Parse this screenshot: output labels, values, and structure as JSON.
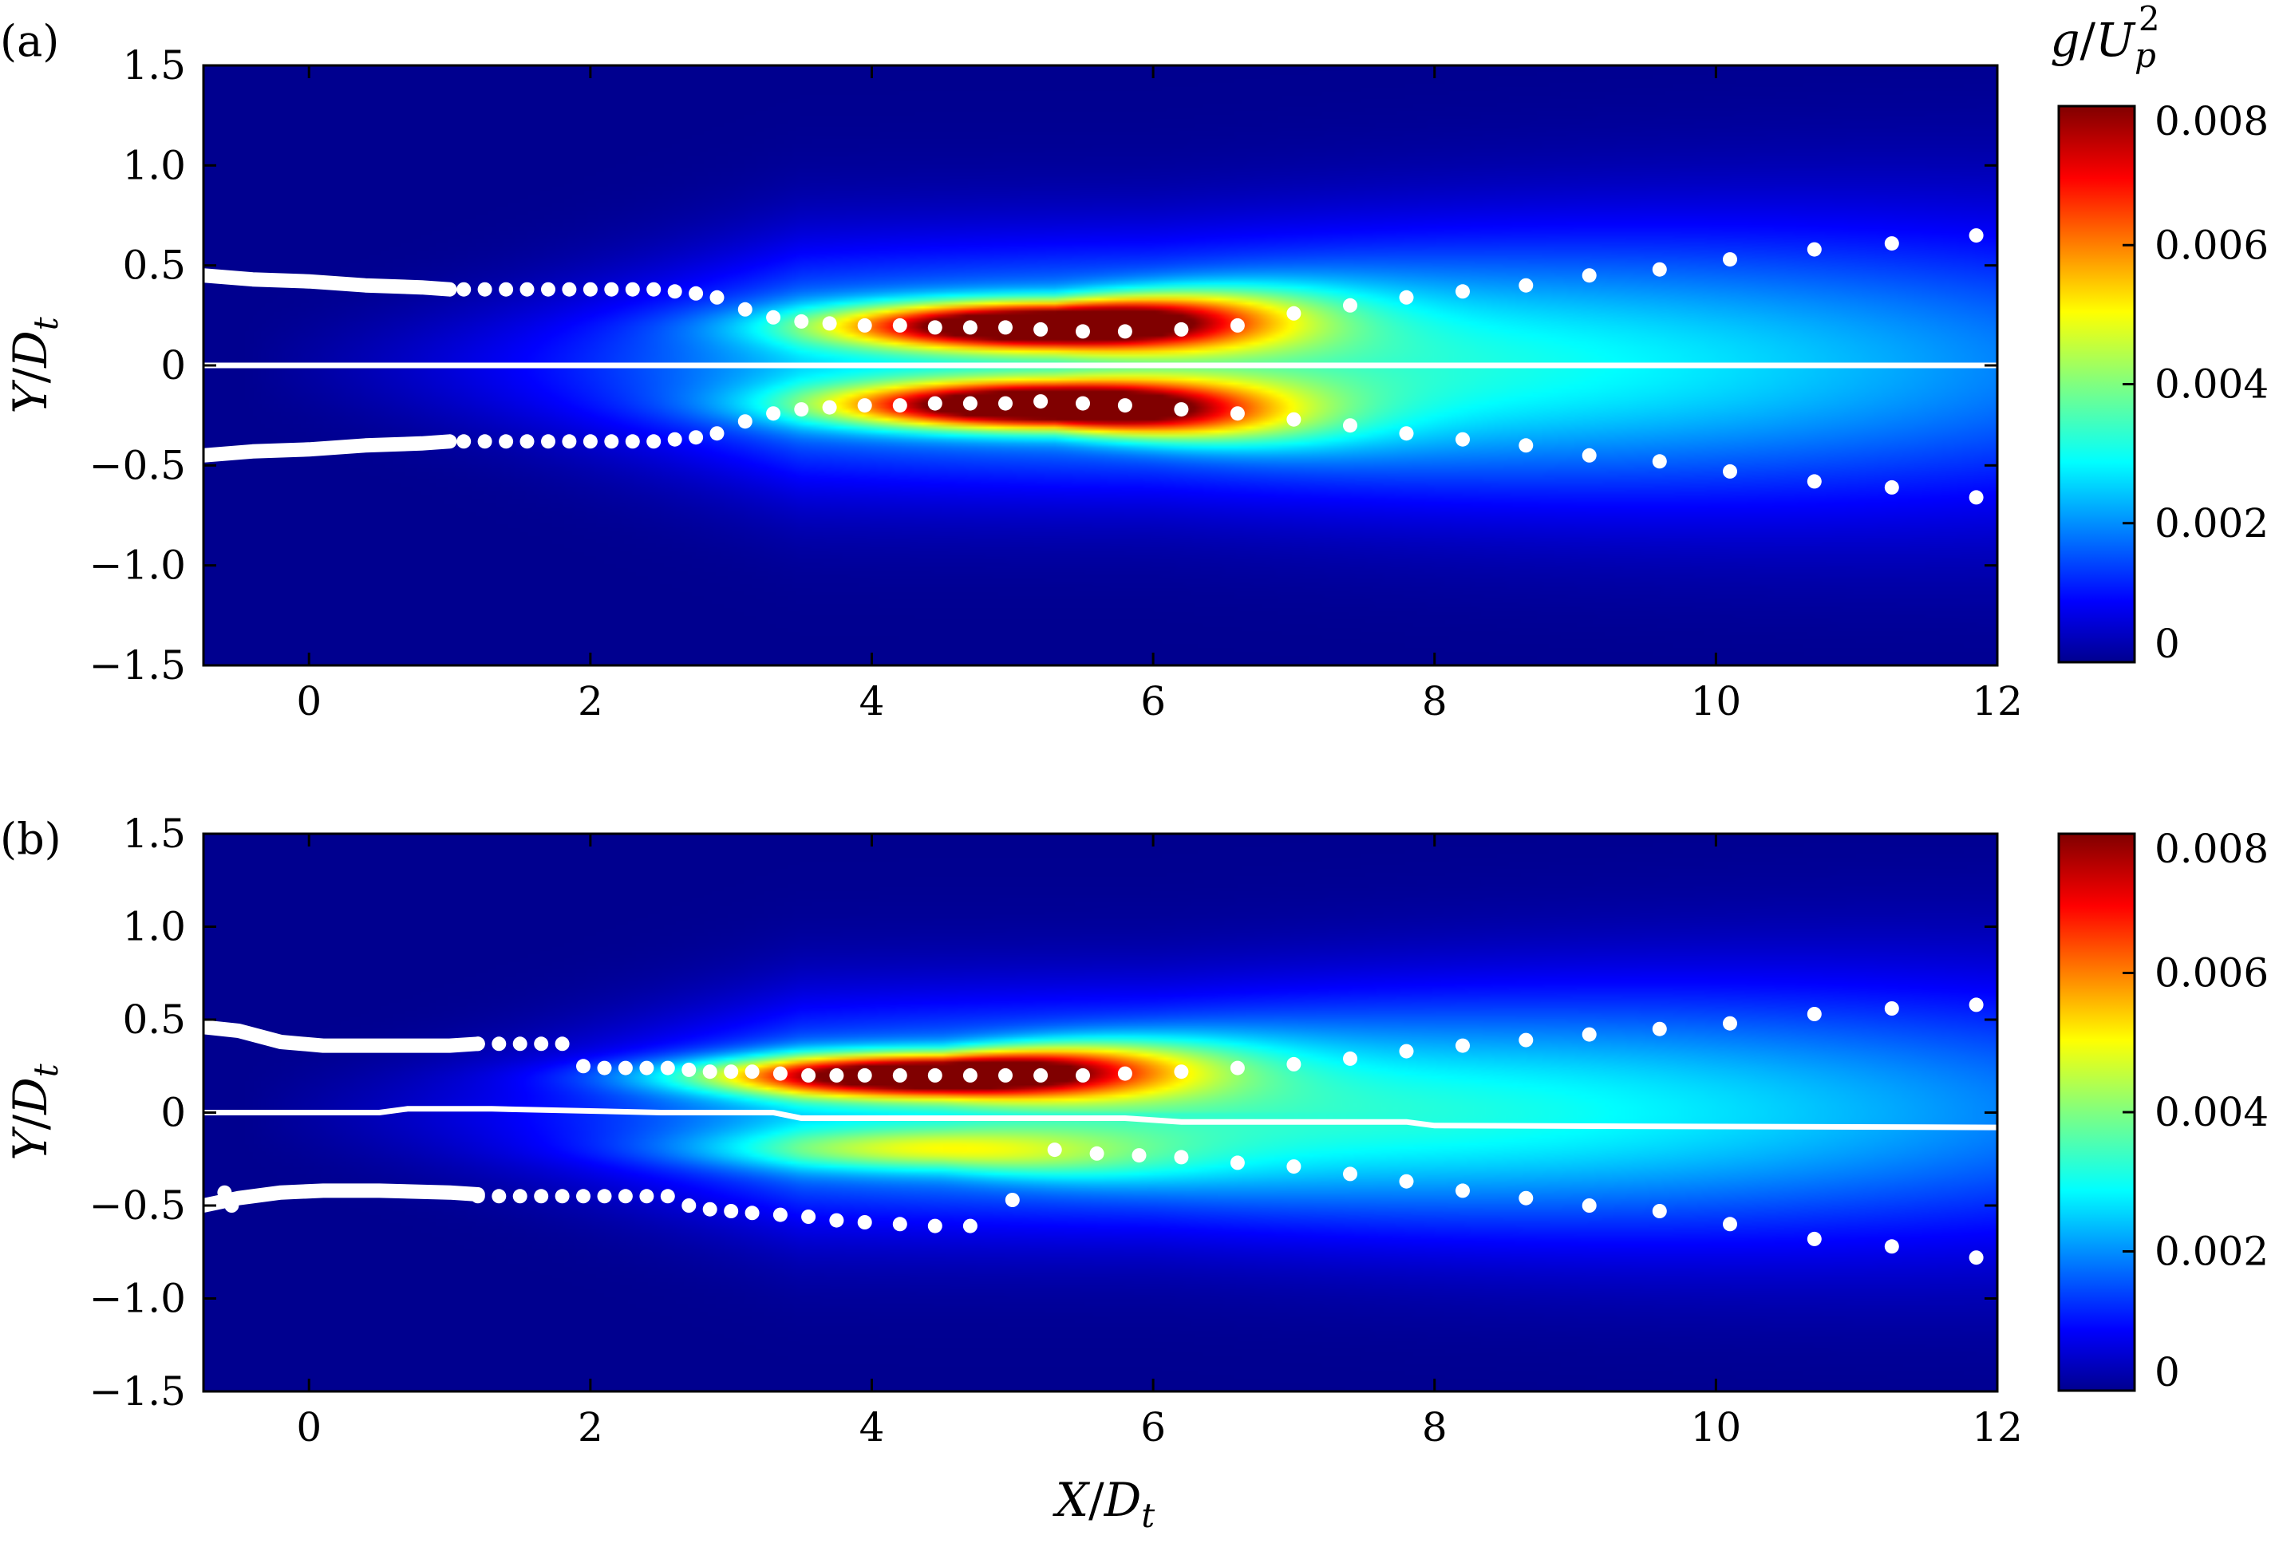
{
  "chart_data": [
    {
      "type": "heatmap",
      "panel_label": "(a)",
      "xlim": [
        -0.75,
        12
      ],
      "ylim": [
        -1.5,
        1.5
      ],
      "xticks": [
        0,
        2,
        4,
        6,
        8,
        10,
        12
      ],
      "xtick_labels": [
        "0",
        "2",
        "4",
        "6",
        "8",
        "10",
        "12"
      ],
      "yticks": [
        1.5,
        1.0,
        0.5,
        0,
        -0.5,
        -1.0,
        -1.5
      ],
      "ytick_labels": [
        "1.5",
        "1.0",
        "0.5",
        "0",
        "−0.5",
        "−1.0",
        "−1.5"
      ],
      "xlabel": "",
      "ylabel_main": "Y",
      "ylabel_sub": "D",
      "ylabel_subscript": "t",
      "colorbar": {
        "title_main": "g",
        "title_denom": "U",
        "title_sub": "p",
        "title_sup": "2",
        "range": [
          0,
          0.008
        ],
        "ticks": [
          0,
          0.002,
          0.004,
          0.006,
          0.008
        ],
        "tick_labels": [
          "0",
          "0.002",
          "0.004",
          "0.006",
          "0.008"
        ]
      },
      "field": {
        "peak": 0.0082,
        "center_x": 5.3,
        "half_width_x": 1.45,
        "lobe_y": 0.2,
        "lobe_half_width_y": 0.11,
        "spread_half_width_y": 0.55,
        "upper_factor": 1.0,
        "lower_factor": 1.0
      },
      "centerline": {
        "x": [
          -0.75,
          12
        ],
        "y": [
          0,
          0
        ]
      },
      "trace_upper": {
        "x": [
          -0.75,
          -0.4,
          0,
          0.4,
          0.8,
          1.0
        ],
        "y": [
          0.45,
          0.43,
          0.42,
          0.4,
          0.39,
          0.38
        ]
      },
      "trace_lower": {
        "x": [
          -0.75,
          -0.4,
          0,
          0.4,
          0.8,
          1.0
        ],
        "y": [
          -0.45,
          -0.43,
          -0.42,
          -0.4,
          -0.39,
          -0.38
        ]
      },
      "points_upper": {
        "x": [
          1.1,
          1.25,
          1.4,
          1.55,
          1.7,
          1.85,
          2.0,
          2.15,
          2.3,
          2.45,
          2.6,
          2.75,
          2.9,
          3.1,
          3.3,
          3.5,
          3.7,
          3.95,
          4.2,
          4.45,
          4.7,
          4.95,
          5.2,
          5.5,
          5.8,
          6.2,
          6.6,
          7.0,
          7.4,
          7.8,
          8.2,
          8.65,
          9.1,
          9.6,
          10.1,
          10.7,
          11.25,
          11.85
        ],
        "y": [
          0.38,
          0.38,
          0.38,
          0.38,
          0.38,
          0.38,
          0.38,
          0.38,
          0.38,
          0.38,
          0.37,
          0.36,
          0.34,
          0.28,
          0.24,
          0.22,
          0.21,
          0.2,
          0.2,
          0.19,
          0.19,
          0.19,
          0.18,
          0.17,
          0.17,
          0.18,
          0.2,
          0.26,
          0.3,
          0.34,
          0.37,
          0.4,
          0.45,
          0.48,
          0.53,
          0.58,
          0.61,
          0.65
        ]
      },
      "points_lower": {
        "x": [
          1.1,
          1.25,
          1.4,
          1.55,
          1.7,
          1.85,
          2.0,
          2.15,
          2.3,
          2.45,
          2.6,
          2.75,
          2.9,
          3.1,
          3.3,
          3.5,
          3.7,
          3.95,
          4.2,
          4.45,
          4.7,
          4.95,
          5.2,
          5.5,
          5.8,
          6.2,
          6.6,
          7.0,
          7.4,
          7.8,
          8.2,
          8.65,
          9.1,
          9.6,
          10.1,
          10.7,
          11.25,
          11.85
        ],
        "y": [
          -0.38,
          -0.38,
          -0.38,
          -0.38,
          -0.38,
          -0.38,
          -0.38,
          -0.38,
          -0.38,
          -0.38,
          -0.37,
          -0.36,
          -0.34,
          -0.28,
          -0.24,
          -0.22,
          -0.21,
          -0.2,
          -0.2,
          -0.19,
          -0.19,
          -0.19,
          -0.18,
          -0.19,
          -0.2,
          -0.22,
          -0.24,
          -0.27,
          -0.3,
          -0.34,
          -0.37,
          -0.4,
          -0.45,
          -0.48,
          -0.53,
          -0.58,
          -0.61,
          -0.66
        ]
      }
    },
    {
      "type": "heatmap",
      "panel_label": "(b)",
      "xlim": [
        -0.75,
        12
      ],
      "ylim": [
        -1.5,
        1.5
      ],
      "xticks": [
        0,
        2,
        4,
        6,
        8,
        10,
        12
      ],
      "xtick_labels": [
        "0",
        "2",
        "4",
        "6",
        "8",
        "10",
        "12"
      ],
      "yticks": [
        1.5,
        1.0,
        0.5,
        0,
        -0.5,
        -1.0,
        -1.5
      ],
      "ytick_labels": [
        "1.5",
        "1.0",
        "0.5",
        "0",
        "−0.5",
        "−1.0",
        "−1.5"
      ],
      "xlabel_main": "X",
      "xlabel_sub": "D",
      "xlabel_subscript": "t",
      "ylabel_main": "Y",
      "ylabel_sub": "D",
      "ylabel_subscript": "t",
      "colorbar": {
        "range": [
          0,
          0.008
        ],
        "ticks": [
          0,
          0.002,
          0.004,
          0.006,
          0.008
        ],
        "tick_labels": [
          "0",
          "0.002",
          "0.004",
          "0.006",
          "0.008"
        ]
      },
      "field": {
        "peak": 0.008,
        "center_x": 4.5,
        "half_width_x": 1.55,
        "lobe_y": 0.2,
        "lobe_half_width_y": 0.11,
        "spread_half_width_y": 0.55,
        "upper_factor": 1.0,
        "lower_factor": 0.3
      },
      "centerline": {
        "x": [
          -0.75,
          0,
          0.5,
          0.7,
          1.3,
          2.5,
          3.0,
          3.3,
          3.5,
          5.8,
          6.2,
          7.8,
          8.0,
          12
        ],
        "y": [
          0,
          0,
          0,
          0.02,
          0.02,
          0,
          0,
          0,
          -0.03,
          -0.03,
          -0.05,
          -0.05,
          -0.07,
          -0.08
        ]
      },
      "trace_upper": {
        "x": [
          -0.75,
          -0.5,
          -0.2,
          0.1,
          0.5,
          1.0,
          1.2
        ],
        "y": [
          0.46,
          0.44,
          0.38,
          0.36,
          0.36,
          0.36,
          0.37
        ]
      },
      "trace_lower": {
        "x": [
          -0.75,
          -0.5,
          -0.2,
          0.1,
          0.5,
          1.0,
          1.2
        ],
        "y": [
          -0.5,
          -0.46,
          -0.43,
          -0.42,
          -0.42,
          -0.43,
          -0.44
        ]
      },
      "points_upper": {
        "x": [
          1.2,
          1.35,
          1.5,
          1.65,
          1.8,
          1.95,
          2.1,
          2.25,
          2.4,
          2.55,
          2.7,
          2.85,
          3.0,
          3.15,
          3.35,
          3.55,
          3.75,
          3.95,
          4.2,
          4.45,
          4.7,
          4.95,
          5.2,
          5.5,
          5.8,
          6.2,
          6.6,
          7.0,
          7.4,
          7.8,
          8.2,
          8.65,
          9.1,
          9.6,
          10.1,
          10.7,
          11.25,
          11.85
        ],
        "y": [
          0.37,
          0.37,
          0.37,
          0.37,
          0.37,
          0.25,
          0.24,
          0.24,
          0.24,
          0.24,
          0.23,
          0.22,
          0.22,
          0.22,
          0.21,
          0.2,
          0.2,
          0.2,
          0.2,
          0.2,
          0.2,
          0.2,
          0.2,
          0.2,
          0.21,
          0.22,
          0.24,
          0.26,
          0.29,
          0.33,
          0.36,
          0.39,
          0.42,
          0.45,
          0.48,
          0.53,
          0.56,
          0.58
        ]
      },
      "points_lower": {
        "x": [
          -0.6,
          -0.55,
          1.2,
          1.35,
          1.5,
          1.65,
          1.8,
          1.95,
          2.1,
          2.25,
          2.4,
          2.55,
          2.7,
          2.85,
          3.0,
          3.15,
          3.35,
          3.55,
          3.75,
          3.95,
          4.2,
          4.45,
          4.7,
          5.0,
          5.3,
          5.6,
          5.9,
          6.2,
          6.6,
          7.0,
          7.4,
          7.8,
          8.2,
          8.65,
          9.1,
          9.6,
          10.1,
          10.7,
          11.25,
          11.85
        ],
        "y": [
          -0.43,
          -0.5,
          -0.45,
          -0.45,
          -0.45,
          -0.45,
          -0.45,
          -0.45,
          -0.45,
          -0.45,
          -0.45,
          -0.45,
          -0.5,
          -0.52,
          -0.53,
          -0.54,
          -0.55,
          -0.56,
          -0.58,
          -0.59,
          -0.6,
          -0.61,
          -0.61,
          -0.47,
          -0.2,
          -0.22,
          -0.23,
          -0.24,
          -0.27,
          -0.29,
          -0.33,
          -0.37,
          -0.42,
          -0.46,
          -0.5,
          -0.53,
          -0.6,
          -0.68,
          -0.72,
          -0.78
        ]
      }
    }
  ]
}
